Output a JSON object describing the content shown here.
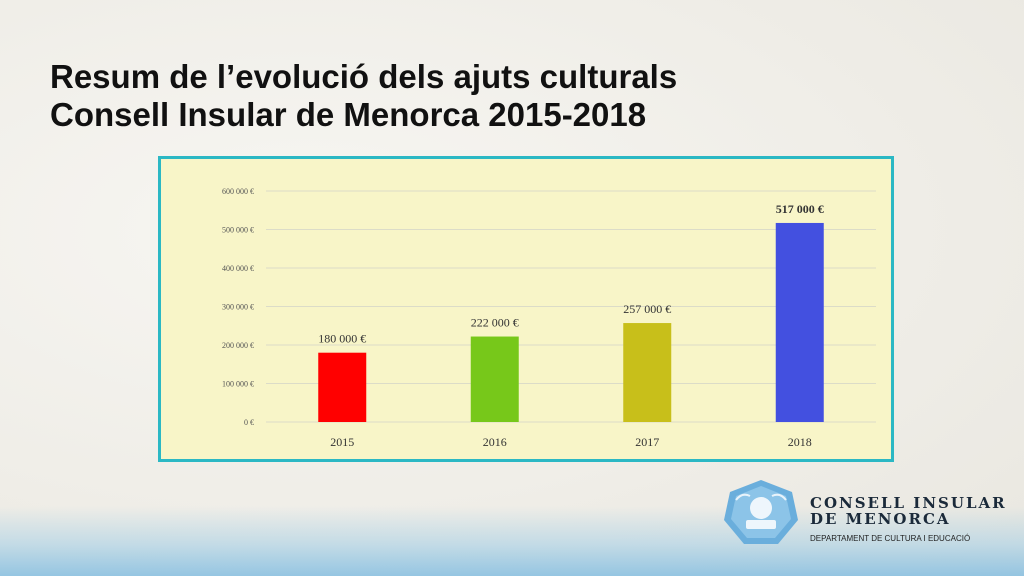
{
  "slide": {
    "title_line1": "Resum de l’evolució dels ajuts culturals",
    "title_line2": "Consell Insular de Menorca 2015-2018"
  },
  "branding": {
    "org_line1": "CONSELL INSULAR",
    "org_line2": "DE MENORCA",
    "department": "DEPARTAMENT DE CULTURA I EDUCACIÓ",
    "logo_icon": "consell-insular-emblem-icon"
  },
  "chart_data": {
    "type": "bar",
    "categories": [
      "2015",
      "2016",
      "2017",
      "2018"
    ],
    "values": [
      180000,
      222000,
      257000,
      517000
    ],
    "data_labels": [
      "180 000 €",
      "222 000 €",
      "257 000 €",
      "517 000 €"
    ],
    "bar_colors": [
      "#ff0000",
      "#77c81a",
      "#c8bf1a",
      "#4350e0"
    ],
    "ylim": [
      0,
      600000
    ],
    "yticks": [
      0,
      100000,
      200000,
      300000,
      400000,
      500000,
      600000
    ],
    "ytick_labels": [
      "0 €",
      "100 000 €",
      "200 000 €",
      "300 000 €",
      "400 000 €",
      "500 000 €",
      "600 000 €"
    ],
    "grid": true,
    "title": "",
    "xlabel": "",
    "ylabel": ""
  },
  "colors": {
    "frame_border": "#2bb8c4",
    "plot_background": "#f8f5c8",
    "gridline": "#dcdcc8"
  }
}
